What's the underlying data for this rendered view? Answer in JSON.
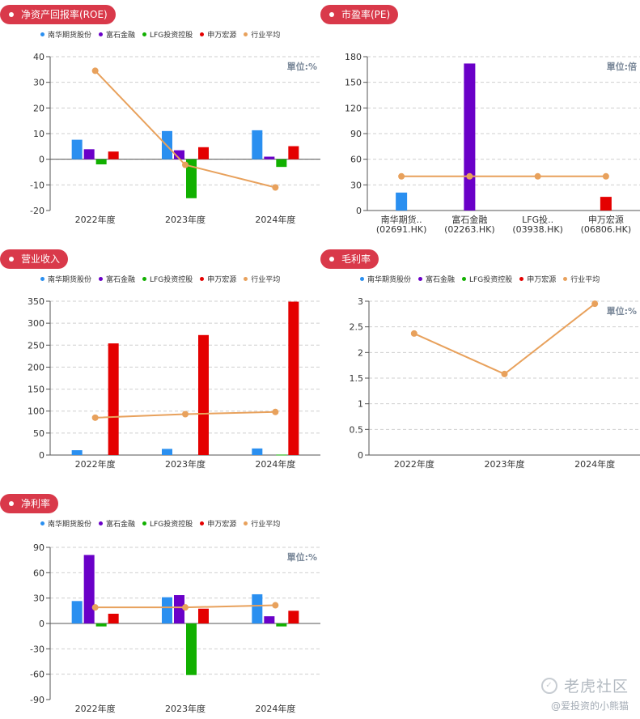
{
  "colors": {
    "pill": "#d9394a",
    "series": [
      "#2a8ff0",
      "#6a00c8",
      "#11b000",
      "#e40000",
      "#e8a15c"
    ]
  },
  "legend": [
    "南华期货股份",
    "富石金融",
    "LFG投资控股",
    "申万宏源",
    "行业平均"
  ],
  "watermark": {
    "brand": "老虎社区",
    "user": "@爱投资的小熊猫"
  },
  "chart_data": [
    {
      "id": "roe",
      "title": "净资产回报率(ROE)",
      "type": "bar",
      "unit": "單位:%",
      "categories": [
        "2022年度",
        "2023年度",
        "2024年度"
      ],
      "ylim": [
        -20,
        40
      ],
      "yticks": [
        -20,
        -10,
        0,
        10,
        20,
        30,
        40
      ],
      "series": [
        {
          "name": "南华期货股份",
          "values": [
            7.6,
            11.0,
            11.3
          ]
        },
        {
          "name": "富石金融",
          "values": [
            3.9,
            3.5,
            1.0
          ]
        },
        {
          "name": "LFG投资控股",
          "values": [
            -2.0,
            -15.2,
            -3.0
          ]
        },
        {
          "name": "申万宏源",
          "values": [
            3.0,
            4.7,
            5.1
          ]
        },
        {
          "name": "行业平均",
          "values": [
            34.5,
            -2.2,
            -11.0
          ],
          "line": true
        }
      ]
    },
    {
      "id": "pe",
      "title": "市盈率(PE)",
      "type": "bar",
      "unit": "單位:倍",
      "categories": [
        "南华期货..(02691.HK)",
        "富石金融(02263.HK)",
        "LFG投..(03938.HK)",
        "申万宏源(06806.HK)"
      ],
      "ylim": [
        0,
        180
      ],
      "yticks": [
        0,
        30,
        60,
        90,
        120,
        150,
        180
      ],
      "single": true,
      "series": [
        {
          "name": "市盈率",
          "values": [
            21,
            172,
            0,
            16
          ],
          "colors": [
            "#2a8ff0",
            "#6a00c8",
            "#11b000",
            "#e40000"
          ]
        },
        {
          "name": "行业平均",
          "values": [
            40,
            40,
            40,
            40
          ],
          "line": true
        }
      ]
    },
    {
      "id": "revenue",
      "title": "营业收入",
      "type": "bar",
      "unit": "",
      "categories": [
        "2022年度",
        "2023年度",
        "2024年度"
      ],
      "ylim": [
        0,
        350
      ],
      "yticks": [
        0,
        50,
        100,
        150,
        200,
        250,
        300,
        350
      ],
      "series": [
        {
          "name": "南华期货股份",
          "values": [
            11,
            14,
            15
          ]
        },
        {
          "name": "富石金融",
          "values": [
            0,
            0,
            0
          ]
        },
        {
          "name": "LFG投资控股",
          "values": [
            0,
            0,
            1
          ]
        },
        {
          "name": "申万宏源",
          "values": [
            254,
            273,
            349
          ]
        },
        {
          "name": "行业平均",
          "values": [
            85,
            93,
            98
          ],
          "line": true
        }
      ]
    },
    {
      "id": "gross",
      "title": "毛利率",
      "type": "line",
      "unit": "單位:%",
      "categories": [
        "2022年度",
        "2023年度",
        "2024年度"
      ],
      "ylim": [
        0,
        3
      ],
      "yticks": [
        0,
        0.5,
        1,
        1.5,
        2,
        2.5,
        3
      ],
      "series": [
        {
          "name": "南华期货股份",
          "values": [
            null,
            null,
            null
          ]
        },
        {
          "name": "富石金融",
          "values": [
            null,
            null,
            null
          ]
        },
        {
          "name": "LFG投资控股",
          "values": [
            null,
            null,
            null
          ]
        },
        {
          "name": "申万宏源",
          "values": [
            null,
            null,
            null
          ]
        },
        {
          "name": "行业平均",
          "values": [
            2.37,
            1.58,
            2.95
          ],
          "line": true
        }
      ]
    },
    {
      "id": "net",
      "title": "净利率",
      "type": "bar",
      "unit": "單位:%",
      "categories": [
        "2022年度",
        "2023年度",
        "2024年度"
      ],
      "ylim": [
        -90,
        90
      ],
      "yticks": [
        -90,
        -60,
        -30,
        0,
        30,
        60,
        90
      ],
      "series": [
        {
          "name": "南华期货股份",
          "values": [
            26.5,
            31,
            34.5
          ]
        },
        {
          "name": "富石金融",
          "values": [
            81,
            33.5,
            8.5
          ]
        },
        {
          "name": "LFG投资控股",
          "values": [
            -3.5,
            -61,
            -3.5
          ]
        },
        {
          "name": "申万宏源",
          "values": [
            11.5,
            17.5,
            15
          ]
        },
        {
          "name": "行业平均",
          "values": [
            19,
            19,
            21.5
          ],
          "line": true
        }
      ]
    }
  ]
}
